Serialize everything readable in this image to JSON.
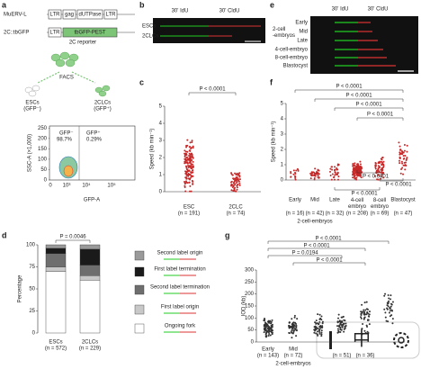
{
  "panel_a": {
    "letter": "a",
    "muervl": "MuERV-L",
    "ltr1": "LTR",
    "gag": "gag",
    "dutpase": "dUTPase",
    "ltr2": "LTR",
    "reporter_name": "2C::tbGFP",
    "reporter_ltr": "LTR",
    "tbgfp": "tbGFP-PEST",
    "reporter_label": "2C reporter",
    "facs": "FACS",
    "escs": "ESCs",
    "escs_gfp": "(GFP⁻)",
    "clcs": "2CLCs",
    "clcs_gfp": "(GFP⁺)",
    "gate_neg": "GFP⁻",
    "gate_neg_pct": "98.7%",
    "gate_pos": "GFP⁺",
    "gate_pos_pct": "0.29%",
    "y_label": "SSC-A (×1,000)",
    "x_label": "GFP-A",
    "yticks": [
      0,
      50,
      100,
      150,
      200,
      250
    ],
    "ylim": [
      0,
      260
    ],
    "xtick_labels": [
      "0",
      "10³",
      "10⁴",
      "10⁵"
    ]
  },
  "panel_b": {
    "letter": "b",
    "idu": "30' IdU",
    "cldu": "30' CldU",
    "rows": [
      "ESCs",
      "2CLCs"
    ]
  },
  "panel_c": {
    "letter": "c",
    "p": "P < 0.0001",
    "y_label": "Speed (kb min⁻¹)",
    "ylim": [
      0,
      5
    ],
    "yticks": [
      0,
      1,
      2,
      3,
      4,
      5
    ],
    "categories": [
      "ESC",
      "2CLC"
    ],
    "n": [
      "(n = 191)",
      "(n = 74)"
    ]
  },
  "panel_e": {
    "letter": "e",
    "idu": "30' IdU",
    "cldu": "30' CldU",
    "group": "2-cell\n-embryos",
    "rows": [
      "Early",
      "Mid",
      "Late",
      "4-cell-embryo",
      "8-cell-embryo",
      "Blastocyst"
    ]
  },
  "panel_f": {
    "letter": "f",
    "y_label": "Speed (kb min⁻¹)",
    "ylim": [
      0,
      5
    ],
    "yticks": [
      0,
      1,
      2,
      3,
      4,
      5
    ],
    "p_values": [
      "P < 0.0001",
      "P < 0.0001",
      "P < 0.0001",
      "P < 0.0001",
      "P < 0.0001",
      "P < 0.0001",
      "P < 0.0001"
    ],
    "categories": [
      "Early",
      "Mid",
      "Late",
      "4-cell\nembryo",
      "8-cell\nembryo",
      "Blastocyst"
    ],
    "n": [
      "(n = 16)",
      "(n = 42)",
      "(n = 32)",
      "(n = 208)",
      "(n = 69)",
      "(n = 47)"
    ],
    "group": "2-cell-embryos"
  },
  "panel_d": {
    "letter": "d",
    "p": "P = 0.0046",
    "y_label": "Percentage",
    "ylim": [
      0,
      100
    ],
    "yticks": [
      0,
      25,
      50,
      75,
      100
    ],
    "categories": [
      "ESCs",
      "2CLCs"
    ],
    "n": [
      "(n = 572)",
      "(n = 229)"
    ],
    "series": [
      {
        "name": "Ongoing fork",
        "color": "#ffffff",
        "values": [
          70,
          60
        ]
      },
      {
        "name": "First label origin",
        "color": "#c8c8c8",
        "values": [
          5,
          5
        ]
      },
      {
        "name": "Second label termination",
        "color": "#6e6e6e",
        "values": [
          15,
          12
        ]
      },
      {
        "name": "First label termination",
        "color": "#1a1a1a",
        "values": [
          6,
          18
        ]
      },
      {
        "name": "Second label origin",
        "color": "#9a9a9a",
        "values": [
          4,
          5
        ]
      }
    ]
  },
  "panel_g": {
    "letter": "g",
    "y_label": "IOD (kb)",
    "ylim": [
      0,
      300
    ],
    "yticks": [
      0,
      50,
      100,
      150,
      200,
      250,
      300
    ],
    "p_values": [
      "P < 0.0001",
      "P < 0.0001",
      "P = 0.0194",
      "P < 0.0001"
    ],
    "categories": [
      "Early",
      "Mid",
      "",
      ""
    ],
    "n": [
      "(n = 143)",
      "(n = 72)",
      "(n = 51)",
      "(n = 36)"
    ],
    "group": "2-cell-embryos"
  },
  "overlay": {
    "ime": "中"
  }
}
